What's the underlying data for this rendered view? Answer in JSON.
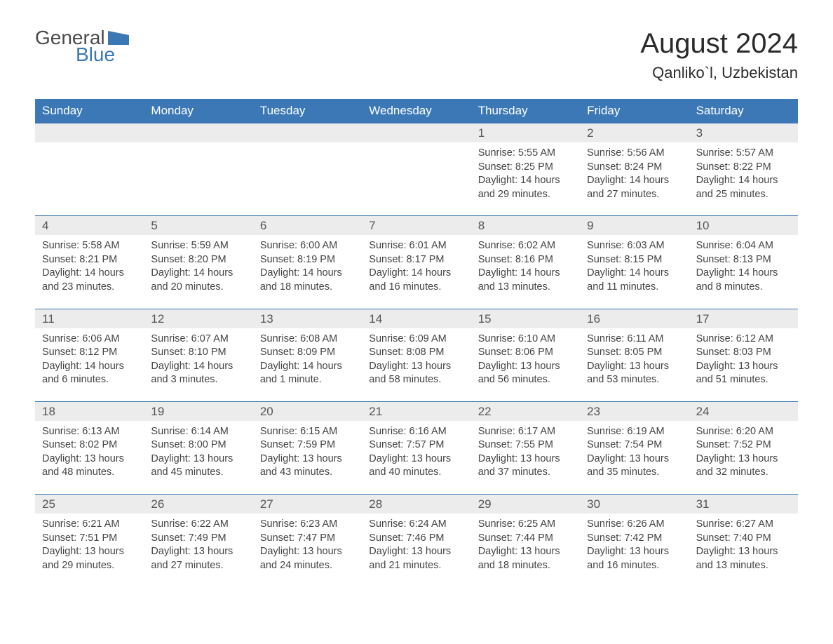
{
  "logo": {
    "text_general": "General",
    "text_blue": "Blue",
    "flag_color": "#3b78b5"
  },
  "title": "August 2024",
  "location": "Qanliko`l, Uzbekistan",
  "colors": {
    "header_bg": "#3b78b5",
    "header_text": "#ffffff",
    "daynum_bg": "#ececec",
    "border": "#3b78b5",
    "body_text": "#444444",
    "page_bg": "#ffffff"
  },
  "weekdays": [
    "Sunday",
    "Monday",
    "Tuesday",
    "Wednesday",
    "Thursday",
    "Friday",
    "Saturday"
  ],
  "weeks": [
    [
      null,
      null,
      null,
      null,
      {
        "n": "1",
        "sr": "5:55 AM",
        "ss": "8:25 PM",
        "dl": "14 hours and 29 minutes."
      },
      {
        "n": "2",
        "sr": "5:56 AM",
        "ss": "8:24 PM",
        "dl": "14 hours and 27 minutes."
      },
      {
        "n": "3",
        "sr": "5:57 AM",
        "ss": "8:22 PM",
        "dl": "14 hours and 25 minutes."
      }
    ],
    [
      {
        "n": "4",
        "sr": "5:58 AM",
        "ss": "8:21 PM",
        "dl": "14 hours and 23 minutes."
      },
      {
        "n": "5",
        "sr": "5:59 AM",
        "ss": "8:20 PM",
        "dl": "14 hours and 20 minutes."
      },
      {
        "n": "6",
        "sr": "6:00 AM",
        "ss": "8:19 PM",
        "dl": "14 hours and 18 minutes."
      },
      {
        "n": "7",
        "sr": "6:01 AM",
        "ss": "8:17 PM",
        "dl": "14 hours and 16 minutes."
      },
      {
        "n": "8",
        "sr": "6:02 AM",
        "ss": "8:16 PM",
        "dl": "14 hours and 13 minutes."
      },
      {
        "n": "9",
        "sr": "6:03 AM",
        "ss": "8:15 PM",
        "dl": "14 hours and 11 minutes."
      },
      {
        "n": "10",
        "sr": "6:04 AM",
        "ss": "8:13 PM",
        "dl": "14 hours and 8 minutes."
      }
    ],
    [
      {
        "n": "11",
        "sr": "6:06 AM",
        "ss": "8:12 PM",
        "dl": "14 hours and 6 minutes."
      },
      {
        "n": "12",
        "sr": "6:07 AM",
        "ss": "8:10 PM",
        "dl": "14 hours and 3 minutes."
      },
      {
        "n": "13",
        "sr": "6:08 AM",
        "ss": "8:09 PM",
        "dl": "14 hours and 1 minute."
      },
      {
        "n": "14",
        "sr": "6:09 AM",
        "ss": "8:08 PM",
        "dl": "13 hours and 58 minutes."
      },
      {
        "n": "15",
        "sr": "6:10 AM",
        "ss": "8:06 PM",
        "dl": "13 hours and 56 minutes."
      },
      {
        "n": "16",
        "sr": "6:11 AM",
        "ss": "8:05 PM",
        "dl": "13 hours and 53 minutes."
      },
      {
        "n": "17",
        "sr": "6:12 AM",
        "ss": "8:03 PM",
        "dl": "13 hours and 51 minutes."
      }
    ],
    [
      {
        "n": "18",
        "sr": "6:13 AM",
        "ss": "8:02 PM",
        "dl": "13 hours and 48 minutes."
      },
      {
        "n": "19",
        "sr": "6:14 AM",
        "ss": "8:00 PM",
        "dl": "13 hours and 45 minutes."
      },
      {
        "n": "20",
        "sr": "6:15 AM",
        "ss": "7:59 PM",
        "dl": "13 hours and 43 minutes."
      },
      {
        "n": "21",
        "sr": "6:16 AM",
        "ss": "7:57 PM",
        "dl": "13 hours and 40 minutes."
      },
      {
        "n": "22",
        "sr": "6:17 AM",
        "ss": "7:55 PM",
        "dl": "13 hours and 37 minutes."
      },
      {
        "n": "23",
        "sr": "6:19 AM",
        "ss": "7:54 PM",
        "dl": "13 hours and 35 minutes."
      },
      {
        "n": "24",
        "sr": "6:20 AM",
        "ss": "7:52 PM",
        "dl": "13 hours and 32 minutes."
      }
    ],
    [
      {
        "n": "25",
        "sr": "6:21 AM",
        "ss": "7:51 PM",
        "dl": "13 hours and 29 minutes."
      },
      {
        "n": "26",
        "sr": "6:22 AM",
        "ss": "7:49 PM",
        "dl": "13 hours and 27 minutes."
      },
      {
        "n": "27",
        "sr": "6:23 AM",
        "ss": "7:47 PM",
        "dl": "13 hours and 24 minutes."
      },
      {
        "n": "28",
        "sr": "6:24 AM",
        "ss": "7:46 PM",
        "dl": "13 hours and 21 minutes."
      },
      {
        "n": "29",
        "sr": "6:25 AM",
        "ss": "7:44 PM",
        "dl": "13 hours and 18 minutes."
      },
      {
        "n": "30",
        "sr": "6:26 AM",
        "ss": "7:42 PM",
        "dl": "13 hours and 16 minutes."
      },
      {
        "n": "31",
        "sr": "6:27 AM",
        "ss": "7:40 PM",
        "dl": "13 hours and 13 minutes."
      }
    ]
  ],
  "labels": {
    "sunrise": "Sunrise: ",
    "sunset": "Sunset: ",
    "daylight": "Daylight: "
  }
}
